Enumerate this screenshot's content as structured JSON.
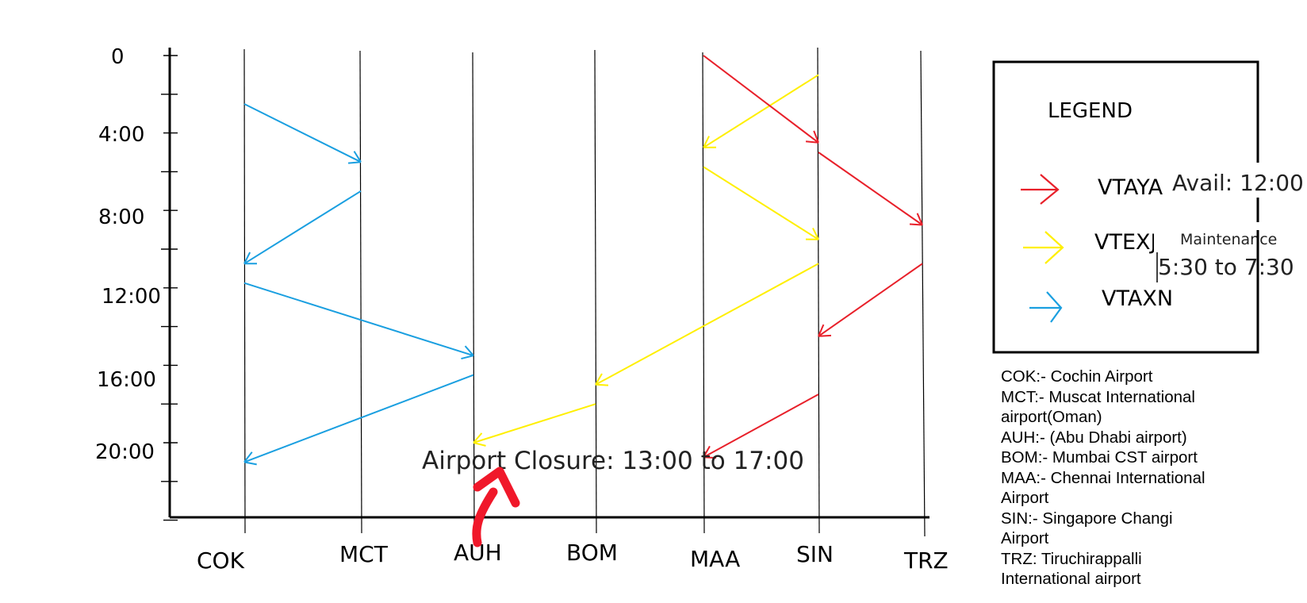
{
  "chart_data": {
    "type": "diagram",
    "y_axis": {
      "labels": [
        "0",
        "4:00",
        "8:00",
        "12:00",
        "16:00",
        "20:00"
      ]
    },
    "x_axis": {
      "labels": [
        "COK",
        "MCT",
        "AUH",
        "BOM",
        "MAA",
        "SIN",
        "TRZ"
      ]
    },
    "legend": {
      "title": "LEGEND",
      "items": [
        {
          "label": "VTAYA",
          "color": "#e8202a"
        },
        {
          "label": "VTEXJ",
          "color": "#ffef00"
        },
        {
          "label": "VTAXN",
          "color": "#1a9fe0"
        }
      ]
    },
    "flights": [
      {
        "aircraft": "VTAXN",
        "from": "COK",
        "to": "MCT",
        "dep": "2:30",
        "arr": "5:30"
      },
      {
        "aircraft": "VTAXN",
        "from": "MCT",
        "to": "COK",
        "dep": "7:00",
        "arr": "10:45"
      },
      {
        "aircraft": "VTAXN",
        "from": "COK",
        "to": "AUH",
        "dep": "11:45",
        "arr": "15:30"
      },
      {
        "aircraft": "VTAXN",
        "from": "AUH",
        "to": "COK",
        "dep": "16:30",
        "arr": "21:00"
      },
      {
        "aircraft": "VTEXJ",
        "from": "SIN",
        "to": "MAA",
        "dep": "1:00",
        "arr": "4:45"
      },
      {
        "aircraft": "VTEXJ",
        "from": "MAA",
        "to": "SIN",
        "dep": "5:45",
        "arr": "9:30"
      },
      {
        "aircraft": "VTEXJ",
        "from": "SIN",
        "to": "BOM",
        "dep": "10:45",
        "arr": "17:00"
      },
      {
        "aircraft": "VTEXJ",
        "from": "BOM",
        "to": "AUH",
        "dep": "18:00",
        "arr": "20:00"
      },
      {
        "aircraft": "VTAYA",
        "from": "MAA",
        "to": "SIN",
        "dep": "0:00",
        "arr": "4:30"
      },
      {
        "aircraft": "VTAYA",
        "from": "SIN",
        "to": "TRZ",
        "dep": "5:00",
        "arr": "8:45"
      },
      {
        "aircraft": "VTAYA",
        "from": "TRZ",
        "to": "SIN",
        "dep": "10:45",
        "arr": "14:30"
      },
      {
        "aircraft": "VTAYA",
        "from": "SIN",
        "to": "MAA",
        "dep": "17:30",
        "arr": "20:45"
      }
    ]
  },
  "annotations": {
    "avail": "Avail: 12:00",
    "maintenance": "Maintenance",
    "maintenance_time": "5:30 to 7:30",
    "airport_closure": "Airport Closure: 13:00 to 17:00"
  },
  "glossary": [
    "COK:- Cochin Airport",
    "MCT:- Muscat International",
    "airport(Oman)",
    "AUH:- (Abu Dhabi airport)",
    "BOM:- Mumbai CST airport",
    "MAA:- Chennai International",
    "Airport",
    "SIN:- Singapore Changi",
    "Airport",
    "TRZ: Tiruchirappalli",
    "International airport"
  ],
  "colors": {
    "VTAYA": "#e8202a",
    "VTEXJ": "#ffef00",
    "VTAXN": "#1a9fe0",
    "closure_arrow": "#f0182a"
  }
}
